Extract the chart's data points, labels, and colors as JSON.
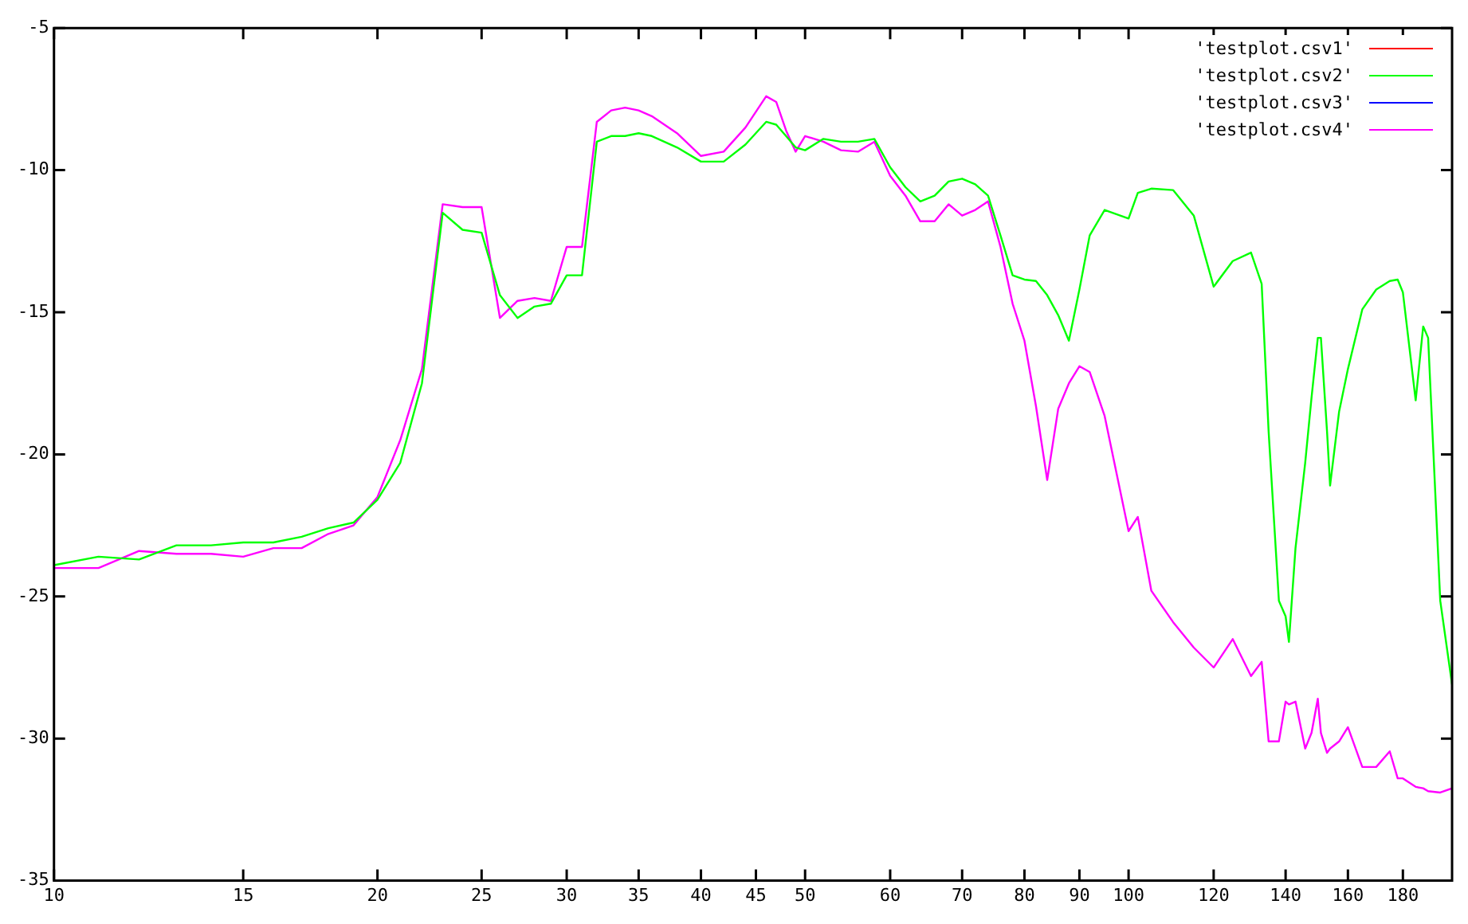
{
  "chart_data": {
    "type": "line",
    "log": "x",
    "legend": "top right",
    "grid": false,
    "marker": "none",
    "line_style": "solid",
    "xlim": [
      10,
      200
    ],
    "xticks": [
      10,
      15,
      20,
      25,
      30,
      35,
      40,
      45,
      50,
      60,
      70,
      80,
      90,
      100,
      120,
      140,
      160,
      180
    ],
    "ylim": [
      -35,
      -5
    ],
    "yticks": [
      -35,
      -30,
      -25,
      -20,
      -15,
      -10,
      -5
    ],
    "x": [
      10,
      11,
      12,
      13,
      14,
      15,
      16,
      17,
      18,
      19,
      20,
      21,
      22,
      23,
      24,
      25,
      26,
      27,
      28,
      29,
      30,
      31,
      32,
      33,
      34,
      35,
      36,
      38,
      40,
      42,
      44,
      46,
      47,
      48,
      49,
      50,
      52,
      54,
      56,
      58,
      60,
      62,
      64,
      66,
      68,
      70,
      72,
      74,
      76,
      78,
      80,
      82,
      84,
      86,
      88,
      90,
      92,
      95,
      100,
      102,
      105,
      110,
      115,
      120,
      125,
      130,
      133,
      135,
      138,
      140,
      141,
      143,
      146,
      148,
      150,
      151,
      153,
      154,
      157,
      160,
      165,
      170,
      175,
      178,
      180,
      185,
      188,
      190,
      195,
      200
    ],
    "series": [
      {
        "name": "'testplot.csv1'",
        "color": "#ff0000",
        "values": [
          null,
          null,
          null,
          null,
          null,
          null,
          null,
          null,
          null,
          null,
          null,
          null,
          null,
          null,
          null,
          null,
          null,
          null,
          null,
          null,
          null,
          null,
          null,
          null,
          null,
          null,
          null,
          null,
          null,
          null,
          null,
          null,
          null,
          null,
          null,
          null,
          null,
          null,
          null,
          null,
          null,
          null,
          null,
          null,
          null,
          null,
          null,
          null,
          null,
          null,
          null,
          null,
          null,
          null,
          null,
          null,
          null,
          null,
          null,
          null,
          null,
          null,
          null,
          null,
          null,
          null,
          null,
          null,
          null,
          null,
          null,
          null,
          null,
          null,
          null,
          null,
          null,
          null,
          null,
          null,
          null,
          null,
          null,
          null,
          null,
          null,
          null,
          null,
          null,
          null
        ]
      },
      {
        "name": "'testplot.csv2'",
        "color": "#00ff00",
        "values": [
          -23.9,
          -23.6,
          -23.7,
          -23.2,
          -23.2,
          -23.1,
          -23.1,
          -22.9,
          -22.6,
          -22.4,
          -21.6,
          -20.3,
          -17.5,
          -11.5,
          -12.1,
          -12.2,
          -14.4,
          -15.2,
          -14.8,
          -14.7,
          -13.7,
          -13.7,
          -9.0,
          -8.8,
          -8.8,
          -8.7,
          -8.8,
          -9.2,
          -9.7,
          -9.7,
          -9.1,
          -8.3,
          -8.4,
          -8.8,
          -9.2,
          -9.3,
          -8.9,
          -9.0,
          -9.0,
          -8.9,
          -9.9,
          -10.6,
          -11.1,
          -10.9,
          -10.4,
          -10.3,
          -10.5,
          -10.9,
          -12.3,
          -13.7,
          -13.85,
          -13.9,
          -14.4,
          -15.1,
          -16.0,
          -14.2,
          -12.3,
          -11.4,
          -11.7,
          -10.8,
          -10.65,
          -10.7,
          -11.6,
          -14.1,
          -13.2,
          -12.9,
          -14.0,
          -19.2,
          -25.15,
          -25.7,
          -26.6,
          -23.3,
          -20.3,
          -18.0,
          -15.9,
          -15.9,
          -19.2,
          -21.1,
          -18.5,
          -17.0,
          -14.9,
          -14.2,
          -13.9,
          -13.85,
          -14.3,
          -18.1,
          -15.5,
          -15.9,
          -25.15,
          -28.1
        ]
      },
      {
        "name": "'testplot.csv3'",
        "color": "#0000ff",
        "values": [
          null,
          null,
          null,
          null,
          null,
          null,
          null,
          null,
          null,
          null,
          null,
          null,
          null,
          null,
          null,
          null,
          null,
          null,
          null,
          null,
          null,
          null,
          null,
          null,
          null,
          null,
          null,
          null,
          null,
          null,
          null,
          null,
          null,
          null,
          null,
          null,
          null,
          null,
          null,
          null,
          null,
          null,
          null,
          null,
          null,
          null,
          null,
          null,
          null,
          null,
          null,
          null,
          null,
          null,
          null,
          null,
          null,
          null,
          null,
          null,
          null,
          null,
          null,
          null,
          null,
          null,
          null,
          null,
          null,
          null,
          null,
          null,
          null,
          null,
          null,
          null,
          null,
          null,
          null,
          null,
          null,
          null,
          null,
          null,
          null,
          null,
          null,
          null,
          null,
          null
        ]
      },
      {
        "name": "'testplot.csv4'",
        "color": "#ff00ff",
        "values": [
          -24.0,
          -24.0,
          -23.4,
          -23.5,
          -23.5,
          -23.6,
          -23.3,
          -23.3,
          -22.8,
          -22.5,
          -21.5,
          -19.5,
          -17.0,
          -11.2,
          -11.3,
          -11.3,
          -15.2,
          -14.6,
          -14.5,
          -14.6,
          -12.7,
          -12.7,
          -8.3,
          -7.9,
          -7.8,
          -7.9,
          -8.1,
          -8.7,
          -9.5,
          -9.35,
          -8.5,
          -7.4,
          -7.6,
          -8.6,
          -9.35,
          -8.8,
          -9.0,
          -9.3,
          -9.35,
          -9.0,
          -10.2,
          -10.9,
          -11.8,
          -11.8,
          -11.2,
          -11.6,
          -11.4,
          -11.1,
          -12.7,
          -14.7,
          -16.0,
          -18.3,
          -20.9,
          -18.4,
          -17.5,
          -16.9,
          -17.1,
          -18.65,
          -22.7,
          -22.2,
          -24.8,
          -25.9,
          -26.8,
          -27.5,
          -26.5,
          -27.8,
          -27.3,
          -30.1,
          -30.1,
          -28.7,
          -28.8,
          -28.7,
          -30.35,
          -29.8,
          -28.6,
          -29.8,
          -30.5,
          -30.35,
          -30.1,
          -29.6,
          -31.0,
          -31.0,
          -30.45,
          -31.4,
          -31.4,
          -31.7,
          -31.75,
          -31.85,
          -31.9,
          -31.75
        ]
      }
    ]
  }
}
